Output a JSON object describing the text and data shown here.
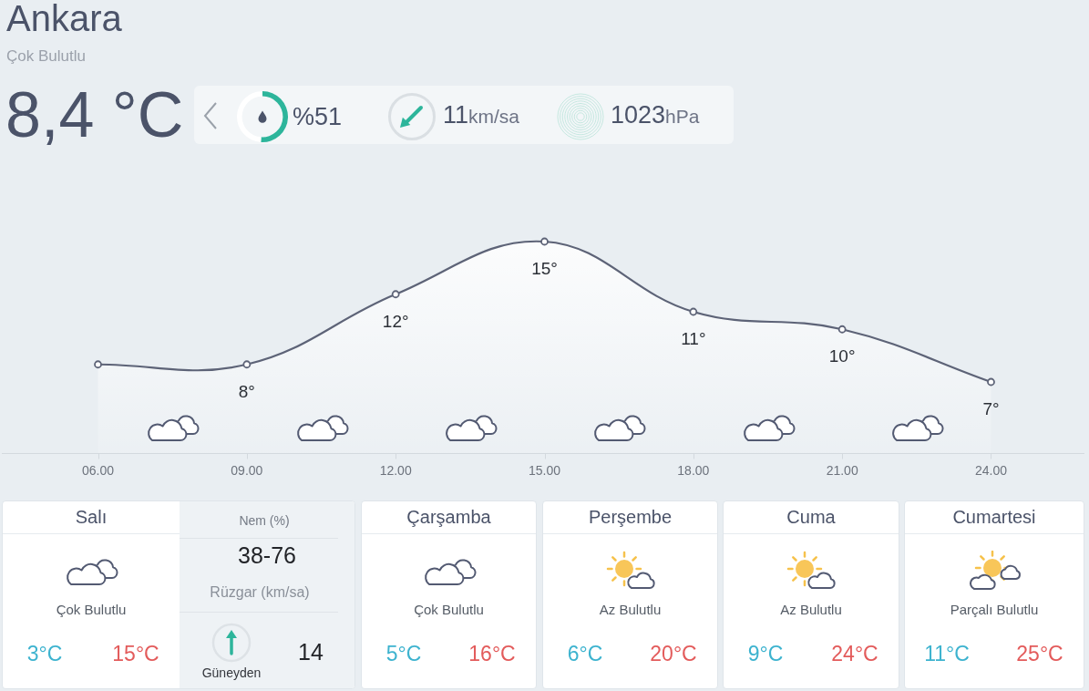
{
  "chart_data": [
    {
      "type": "other",
      "title": "Ankara",
      "subtitle": "Çok Bulutlu",
      "annotations": [
        "8,4 °C"
      ]
    },
    {
      "type": "donut",
      "categories": [
        null,
        null
      ],
      "values": [
        51,
        49
      ],
      "colors": [
        "#2db59b",
        "#ffffff"
      ],
      "annotations": [
        "%51"
      ]
    },
    {
      "type": "other",
      "annotations": [
        "11",
        "km/sa",
        "1023",
        "hPa"
      ]
    },
    {
      "type": "area",
      "categories": [
        "06.00",
        "09.00",
        "12.00",
        "15.00",
        "18.00",
        "21.00",
        "24.00"
      ],
      "values": [
        8,
        8,
        12,
        15,
        11,
        10,
        7
      ],
      "color": "#5d6377",
      "value_labels": [
        null,
        "8°",
        "12°",
        "15°",
        "11°",
        "10°",
        "7°"
      ],
      "tick_labels": "x",
      "marker": "circle"
    },
    {
      "type": "other",
      "title": "Salı",
      "annotations": [
        "Çok Bulutlu",
        "3°C",
        "15°C",
        "Nem (%)",
        "38-76",
        "Rüzgar (km/sa)",
        "14",
        "Güneyden"
      ]
    },
    {
      "type": "other",
      "title": "Çarşamba",
      "annotations": [
        "Çok Bulutlu",
        "5°C",
        "16°C"
      ]
    },
    {
      "type": "other",
      "title": "Perşembe",
      "annotations": [
        "Az Bulutlu",
        "6°C",
        "20°C"
      ]
    },
    {
      "type": "other",
      "title": "Cuma",
      "annotations": [
        "Az Bulutlu",
        "9°C",
        "24°C"
      ]
    },
    {
      "type": "other",
      "title": "Cumartesi",
      "annotations": [
        "Parçalı Bulutlu",
        "11°C",
        "25°C"
      ]
    }
  ]
}
